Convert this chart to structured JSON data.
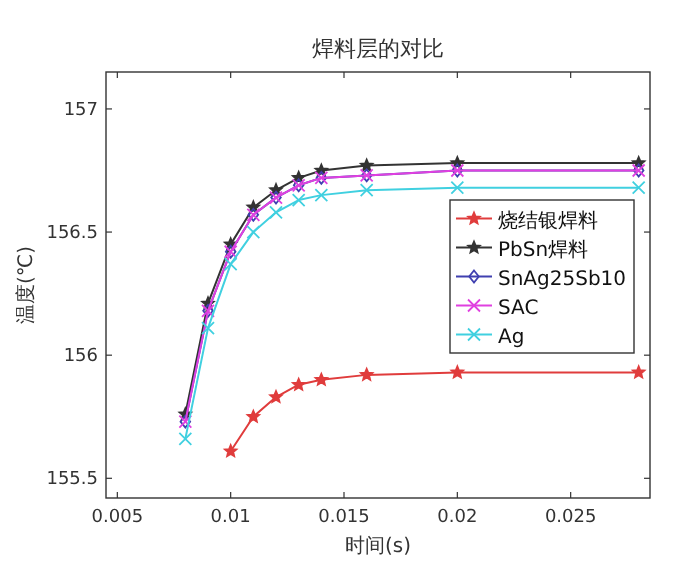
{
  "chart_data": {
    "type": "line",
    "title": "焊料层的对比",
    "xlabel": "时间(s)",
    "ylabel": "温度(℃)",
    "xlim": [
      0.0045,
      0.0285
    ],
    "ylim": [
      155.42,
      157.15
    ],
    "xticks": [
      {
        "value": 0.005,
        "label": "0.005"
      },
      {
        "value": 0.01,
        "label": "0.01"
      },
      {
        "value": 0.015,
        "label": "0.015"
      },
      {
        "value": 0.02,
        "label": "0.02"
      },
      {
        "value": 0.025,
        "label": "0.025"
      }
    ],
    "yticks": [
      155.5,
      156,
      156.5,
      157
    ],
    "grid": false,
    "legend": "right",
    "line_style": "solid",
    "series": [
      {
        "name": "烧结银焊料",
        "color": "#e03c3c",
        "marker": "star",
        "x": [
          0.01,
          0.011,
          0.012,
          0.013,
          0.014,
          0.016,
          0.02,
          0.028
        ],
        "values": [
          155.61,
          155.75,
          155.83,
          155.88,
          155.9,
          155.92,
          155.93,
          155.93
        ]
      },
      {
        "name": "PbSn焊料",
        "color": "#333333",
        "marker": "star",
        "x": [
          0.008,
          0.009,
          0.01,
          0.011,
          0.012,
          0.013,
          0.014,
          0.016,
          0.02,
          0.028
        ],
        "values": [
          155.76,
          156.21,
          156.45,
          156.6,
          156.67,
          156.72,
          156.75,
          156.77,
          156.78,
          156.78
        ]
      },
      {
        "name": "SnAg25Sb10",
        "color": "#4040b0",
        "marker": "diamond",
        "x": [
          0.008,
          0.009,
          0.01,
          0.011,
          0.012,
          0.013,
          0.014,
          0.016,
          0.02,
          0.028
        ],
        "values": [
          155.73,
          156.18,
          156.42,
          156.57,
          156.64,
          156.69,
          156.72,
          156.73,
          156.75,
          156.75
        ]
      },
      {
        "name": "SAC",
        "color": "#e040e0",
        "marker": "cross",
        "x": [
          0.008,
          0.009,
          0.01,
          0.011,
          0.012,
          0.013,
          0.014,
          0.016,
          0.02,
          0.028
        ],
        "values": [
          155.73,
          156.18,
          156.42,
          156.57,
          156.64,
          156.69,
          156.72,
          156.73,
          156.75,
          156.75
        ]
      },
      {
        "name": "Ag",
        "color": "#40d0e0",
        "marker": "cross",
        "x": [
          0.008,
          0.009,
          0.01,
          0.011,
          0.012,
          0.013,
          0.014,
          0.016,
          0.02,
          0.028
        ],
        "values": [
          155.66,
          156.11,
          156.37,
          156.5,
          156.58,
          156.63,
          156.65,
          156.67,
          156.68,
          156.68
        ]
      }
    ]
  }
}
